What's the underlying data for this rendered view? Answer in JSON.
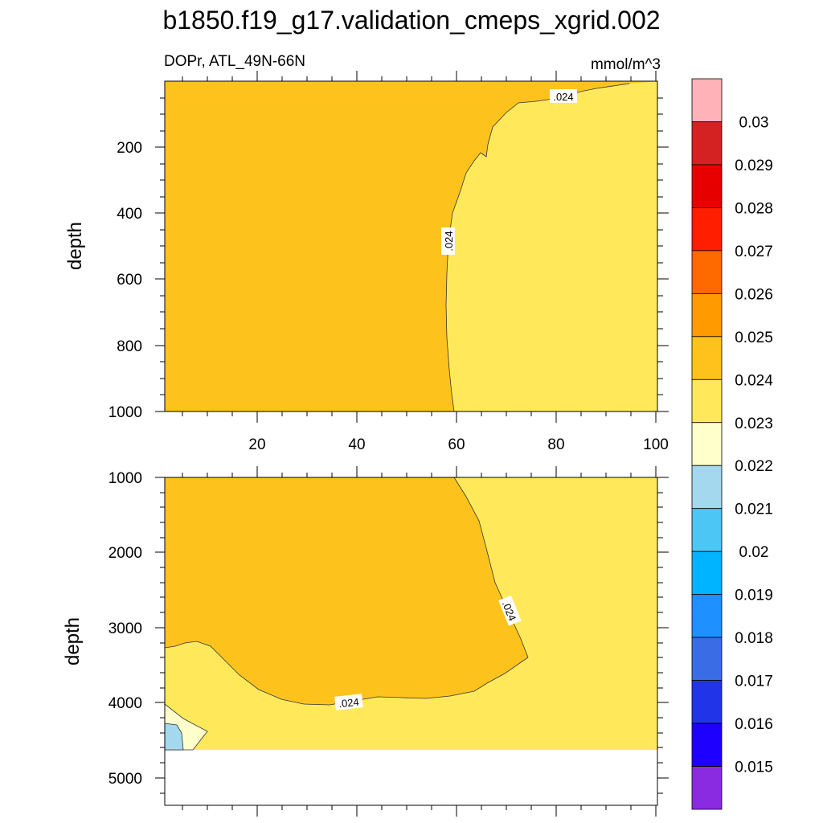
{
  "chart_data": {
    "type": "contour",
    "title": "b1850.f19_g17.validation_cmeps_xgrid.002",
    "variable_label": "DOPr, ATL_49N-66N",
    "units_label": "mmol/m^3",
    "ylabel": "depth",
    "colorbar": {
      "labels": [
        "0.015",
        "0.016",
        "0.017",
        "0.018",
        "0.019",
        "0.02",
        "0.021",
        "0.022",
        "0.023",
        "0.024",
        "0.025",
        "0.026",
        "0.027",
        "0.028",
        "0.029",
        "0.03"
      ],
      "colors": [
        "#8a2be2",
        "#1e00ff",
        "#2234e8",
        "#3a6ce6",
        "#1e90ff",
        "#00b4ff",
        "#4cc6f5",
        "#a3d8ee",
        "#ffffcc",
        "#ffe95b",
        "#fdc31c",
        "#ff9b00",
        "#ff6a00",
        "#ff1e00",
        "#e60000",
        "#d42222",
        "#ffb3b8"
      ]
    },
    "panels": [
      {
        "name": "upper",
        "x_ticks": [
          "20",
          "40",
          "60",
          "80",
          "100"
        ],
        "xlim": [
          1,
          101
        ],
        "ylim": [
          1000,
          0
        ],
        "y_ticks": [
          "200",
          "400",
          "600",
          "800",
          "1000"
        ],
        "contour_labels": [
          ".024",
          ".024"
        ]
      },
      {
        "name": "lower",
        "xlim": [
          1,
          101
        ],
        "ylim": [
          5400,
          1000
        ],
        "y_ticks": [
          "1000",
          "2000",
          "3000",
          "4000",
          "5000"
        ],
        "contour_labels": [
          ".024",
          ".024"
        ]
      }
    ]
  }
}
